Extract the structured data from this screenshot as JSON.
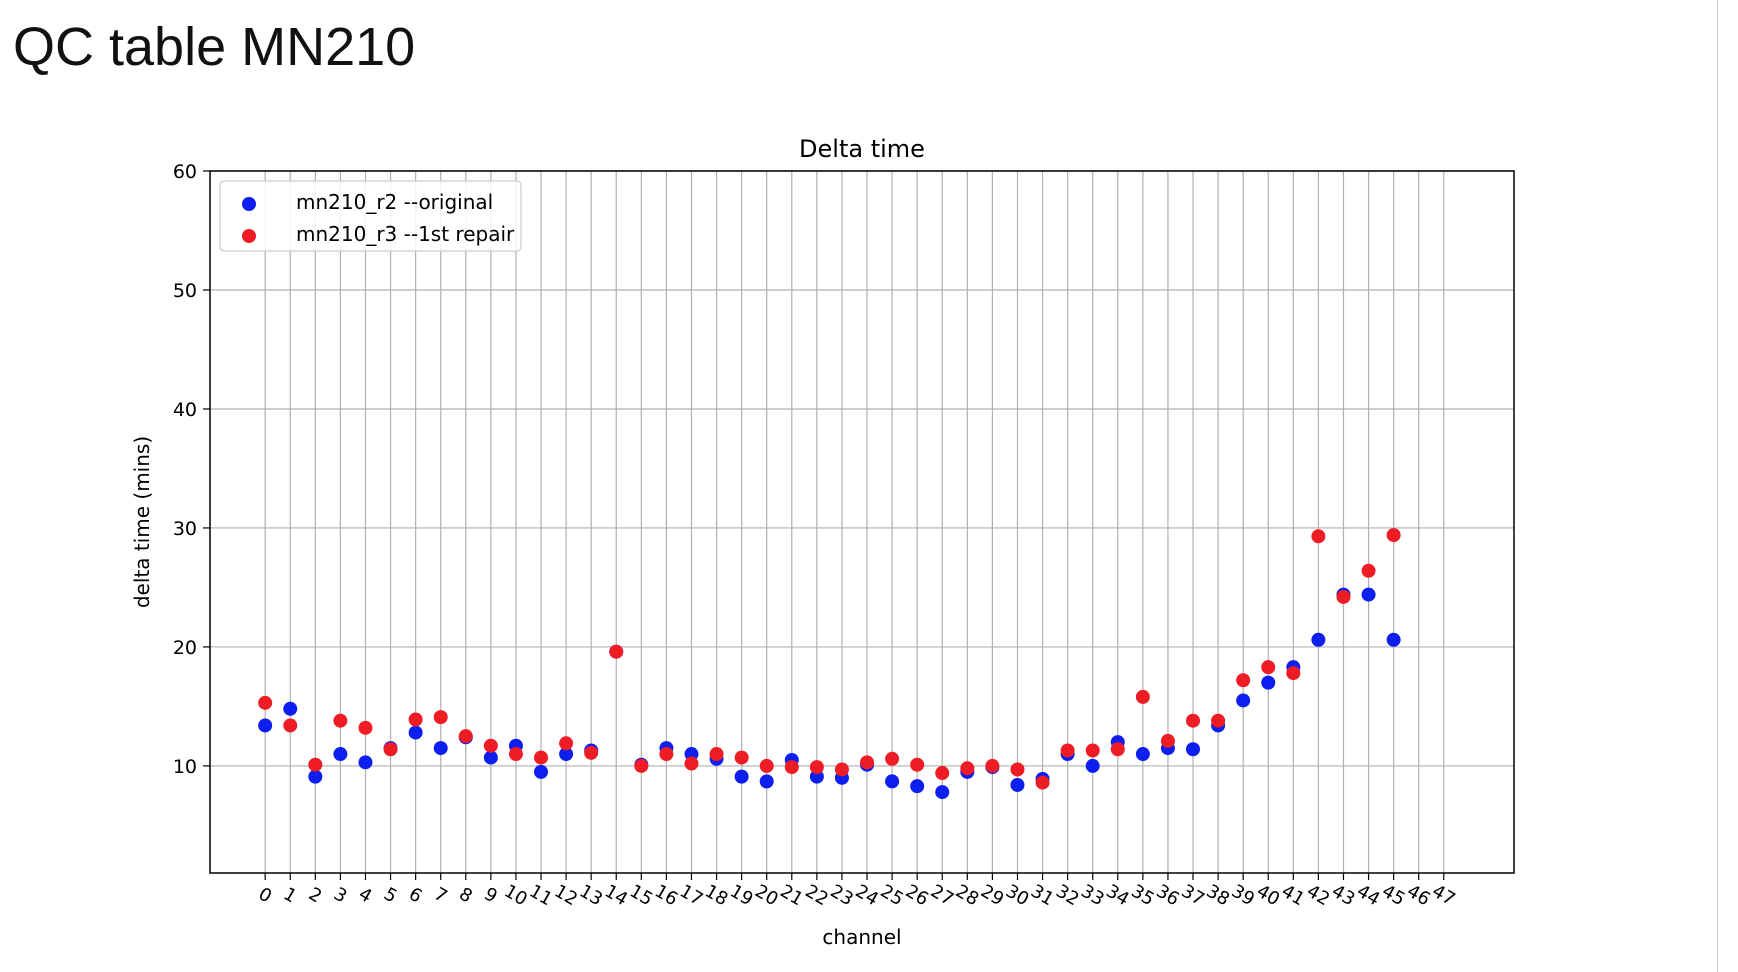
{
  "slide": {
    "title": "QC table MN210"
  },
  "chart_data": {
    "type": "scatter",
    "title": "Delta time",
    "xlabel": "channel",
    "ylabel": "delta time (mins)",
    "xlim": [
      -2.2,
      49.8
    ],
    "ylim": [
      1,
      60
    ],
    "x_ticks": [
      0,
      1,
      2,
      3,
      4,
      5,
      6,
      7,
      8,
      9,
      10,
      11,
      12,
      13,
      14,
      15,
      16,
      17,
      18,
      19,
      20,
      21,
      22,
      23,
      24,
      25,
      26,
      27,
      28,
      29,
      30,
      31,
      32,
      33,
      34,
      35,
      36,
      37,
      38,
      39,
      40,
      41,
      42,
      43,
      44,
      45,
      46,
      47
    ],
    "y_ticks": [
      10,
      20,
      30,
      40,
      50,
      60
    ],
    "grid": true,
    "legend": "top-left",
    "series": [
      {
        "name": "mn210_r2 --original",
        "color": "#0c1fee",
        "x": [
          0,
          1,
          2,
          3,
          4,
          5,
          6,
          7,
          8,
          9,
          10,
          11,
          12,
          13,
          14,
          15,
          16,
          17,
          18,
          19,
          20,
          21,
          22,
          23,
          24,
          25,
          26,
          27,
          28,
          29,
          30,
          31,
          32,
          33,
          34,
          35,
          36,
          37,
          38,
          39,
          40,
          41,
          42,
          43,
          44,
          45
        ],
        "y": [
          13.4,
          14.8,
          9.1,
          11.0,
          10.3,
          11.5,
          12.8,
          11.5,
          12.4,
          10.7,
          11.7,
          9.5,
          11.0,
          11.3,
          19.6,
          10.1,
          11.5,
          11.0,
          10.6,
          9.1,
          8.7,
          10.5,
          9.1,
          9.0,
          10.1,
          8.7,
          8.3,
          7.8,
          9.5,
          9.9,
          8.4,
          8.9,
          11.0,
          10.0,
          12.0,
          11.0,
          11.5,
          11.4,
          13.4,
          15.5,
          17.0,
          18.3,
          20.6,
          24.4,
          24.4,
          20.6
        ]
      },
      {
        "name": "mn210_r3 --1st repair",
        "color": "#ee1c25",
        "x": [
          0,
          1,
          2,
          3,
          4,
          5,
          6,
          7,
          8,
          9,
          10,
          11,
          12,
          13,
          14,
          15,
          16,
          17,
          18,
          19,
          20,
          21,
          22,
          23,
          24,
          25,
          26,
          27,
          28,
          29,
          30,
          31,
          32,
          33,
          34,
          35,
          36,
          37,
          38,
          39,
          40,
          41,
          42,
          43,
          44,
          45
        ],
        "y": [
          15.3,
          13.4,
          10.1,
          13.8,
          13.2,
          11.4,
          13.9,
          14.1,
          12.5,
          11.7,
          11.0,
          10.7,
          11.9,
          11.1,
          19.6,
          10.0,
          11.0,
          10.2,
          11.0,
          10.7,
          10.0,
          9.9,
          9.9,
          9.7,
          10.3,
          10.6,
          10.1,
          9.4,
          9.8,
          10.0,
          9.7,
          8.6,
          11.3,
          11.3,
          11.4,
          15.8,
          12.1,
          13.8,
          13.8,
          17.2,
          18.3,
          17.8,
          29.3,
          24.2,
          26.4,
          29.4
        ]
      }
    ]
  }
}
